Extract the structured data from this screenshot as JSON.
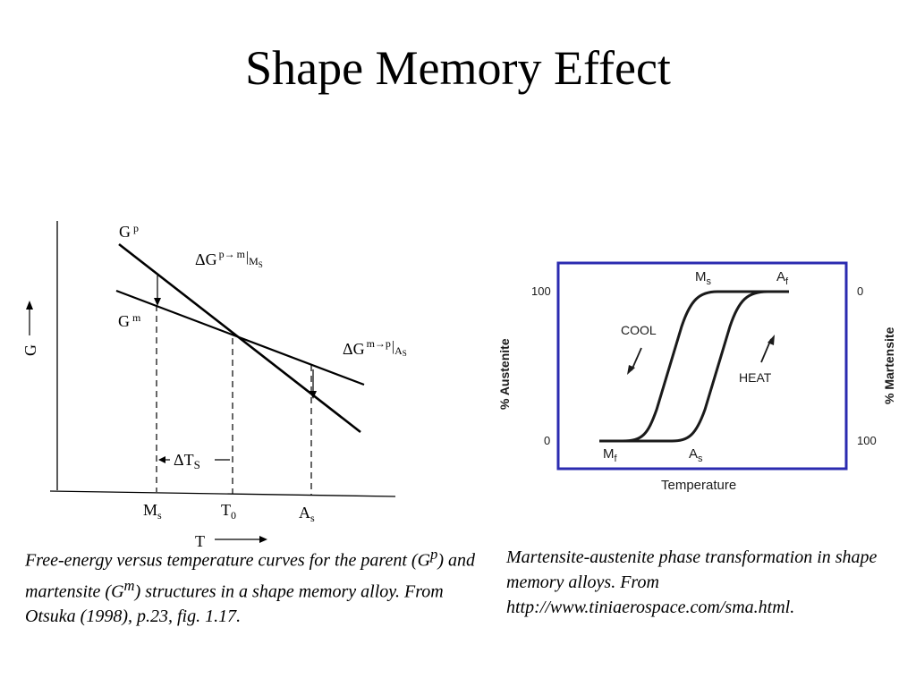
{
  "slide": {
    "title": "Shape Memory Effect"
  },
  "energy_diagram": {
    "axis_y": "G",
    "axis_x": "T",
    "curve_parent": {
      "base": "G",
      "sup": "p"
    },
    "curve_martensite": {
      "base": "G",
      "sup": "m"
    },
    "delta_pm": {
      "prefix": "ΔG",
      "sup": "p",
      "arrow": "→",
      "sup2": "m",
      "bar": "|",
      "sub": "M",
      "sub2": "S"
    },
    "delta_mp": {
      "prefix": "ΔG",
      "sup": "m",
      "arrow": "→",
      "sup2": "p",
      "bar": "|",
      "sub": "A",
      "sub2": "S"
    },
    "delta_t": {
      "prefix": "ΔT",
      "sub": "S"
    },
    "tick_ms": {
      "base": "M",
      "sub": "s"
    },
    "tick_t0": {
      "base": "T",
      "sub": "0"
    },
    "tick_as": {
      "base": "A",
      "sub": "s"
    }
  },
  "hysteresis_diagram": {
    "left_axis_label": "% Austenite",
    "right_axis_label": "% Martensite",
    "x_axis_label": "Temperature",
    "left_top": "100",
    "left_bottom": "0",
    "right_top": "0",
    "right_bottom": "100",
    "label_ms": {
      "base": "M",
      "sub": "s"
    },
    "label_af": {
      "base": "A",
      "sub": "f"
    },
    "label_mf": {
      "base": "M",
      "sub": "f"
    },
    "label_as": {
      "base": "A",
      "sub": "s"
    },
    "cool": "COOL",
    "heat": "HEAT",
    "frame_color": "#2b2bb0"
  },
  "captions": {
    "left": {
      "t1": "Free-energy versus temperature curves for the parent (G",
      "s1": "p",
      "t2": ") and martensite (G",
      "s2": "m",
      "t3": ") structures in a shape memory alloy.  From Otsuka (1998), p.23, fig. 1.17."
    },
    "right": "Martensite-austenite phase transformation in shape memory alloys.  From http://www.tiniaerospace.com/sma.html."
  }
}
